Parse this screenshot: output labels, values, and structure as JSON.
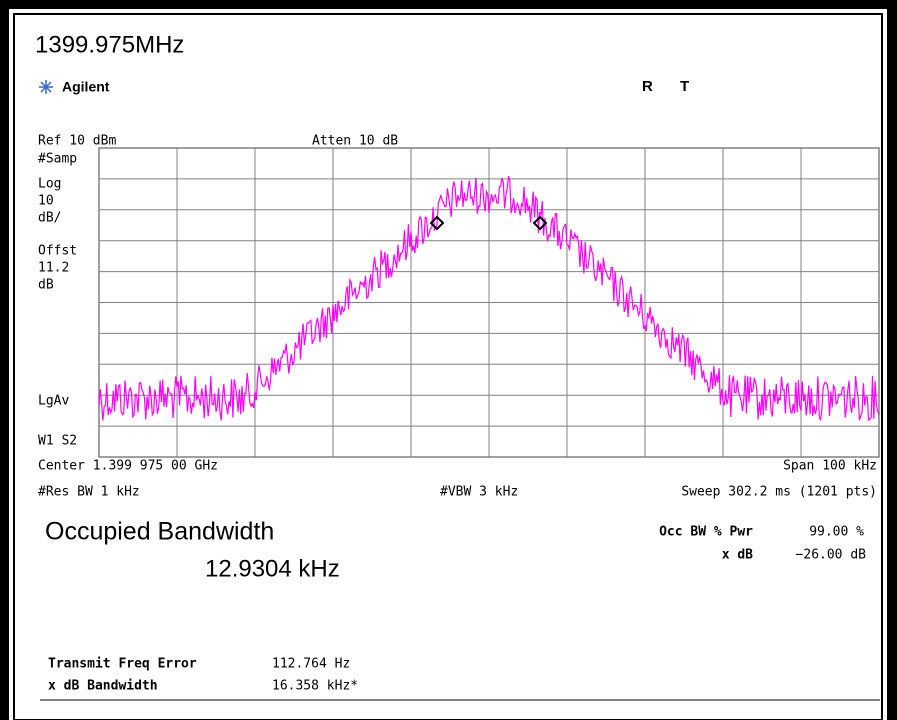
{
  "header": {
    "frequency": "1399.975MHz",
    "brand": "Agilent",
    "flag_r": "R",
    "flag_t": "T"
  },
  "display": {
    "ref_level": "Ref 10 dBm",
    "attenuation": "Atten 10 dB",
    "left_labels": [
      "#Samp",
      "Log",
      "10",
      "dB/",
      "Offst",
      "11.2",
      "dB",
      "LgAv",
      "W1 S2"
    ],
    "center": "Center 1.399 975 00 GHz",
    "span": "Span 100 kHz",
    "res_bw": "#Res BW 1 kHz",
    "vbw": "#VBW 3 kHz",
    "sweep": "Sweep 302.2 ms (1201 pts)"
  },
  "measurement": {
    "title": "Occupied Bandwidth",
    "result": "12.9304 kHz",
    "settings": [
      {
        "label": "Occ BW % Pwr",
        "value": "99.00 %"
      },
      {
        "label": "x dB",
        "value": "−26.00 dB"
      }
    ],
    "details": [
      {
        "label": "Transmit Freq Error",
        "value": "112.764 Hz"
      },
      {
        "label": "x dB Bandwidth",
        "value": "16.358 kHz*"
      }
    ]
  }
}
